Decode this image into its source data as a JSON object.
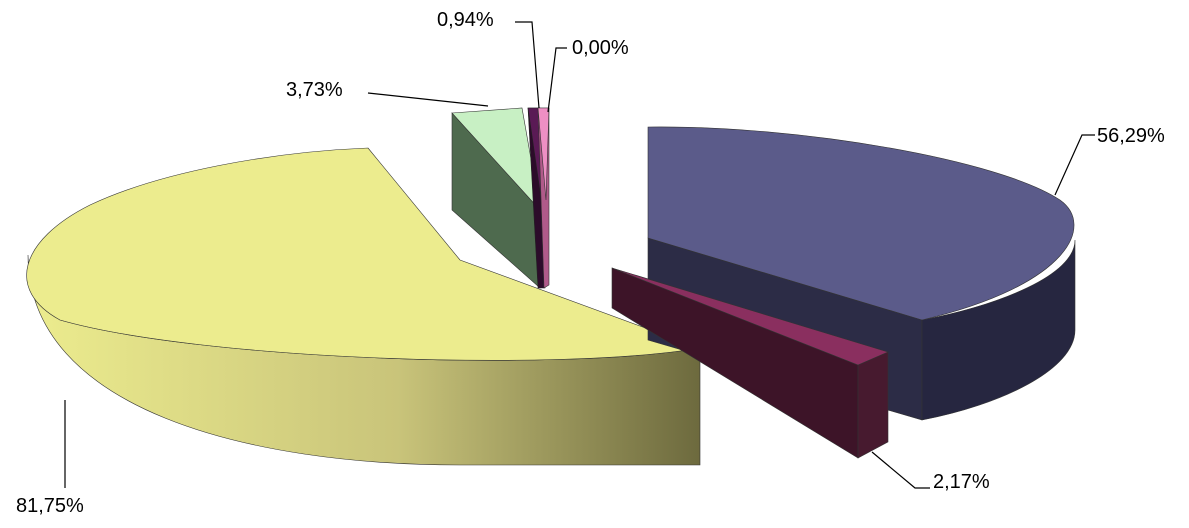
{
  "chart_data": {
    "type": "pie",
    "title": "",
    "style": "3d-exploded",
    "legend": "none",
    "labels_shown": "value",
    "slices": [
      {
        "value_label": "56,29%",
        "value": 56.29,
        "top_color": "#5b5b8a",
        "side_color": "#292944"
      },
      {
        "value_label": "2,17%",
        "value": 2.17,
        "top_color": "#8a2f5f",
        "side_color": "#3d1428"
      },
      {
        "value_label": "81,75%",
        "value": 81.75,
        "top_color": "#ecec8e",
        "side_color": "#a9a066"
      },
      {
        "value_label": "3,73%",
        "value": 3.73,
        "top_color": "#c8f0c4",
        "side_color": "#4e6a4e"
      },
      {
        "value_label": "0,94%",
        "value": 0.94,
        "top_color": "#5a1a55",
        "side_color": "#2c0b2a"
      },
      {
        "value_label": "0,00%",
        "value": 0.0,
        "top_color": "#ee8fc4",
        "side_color": "#b05a8a"
      }
    ]
  }
}
